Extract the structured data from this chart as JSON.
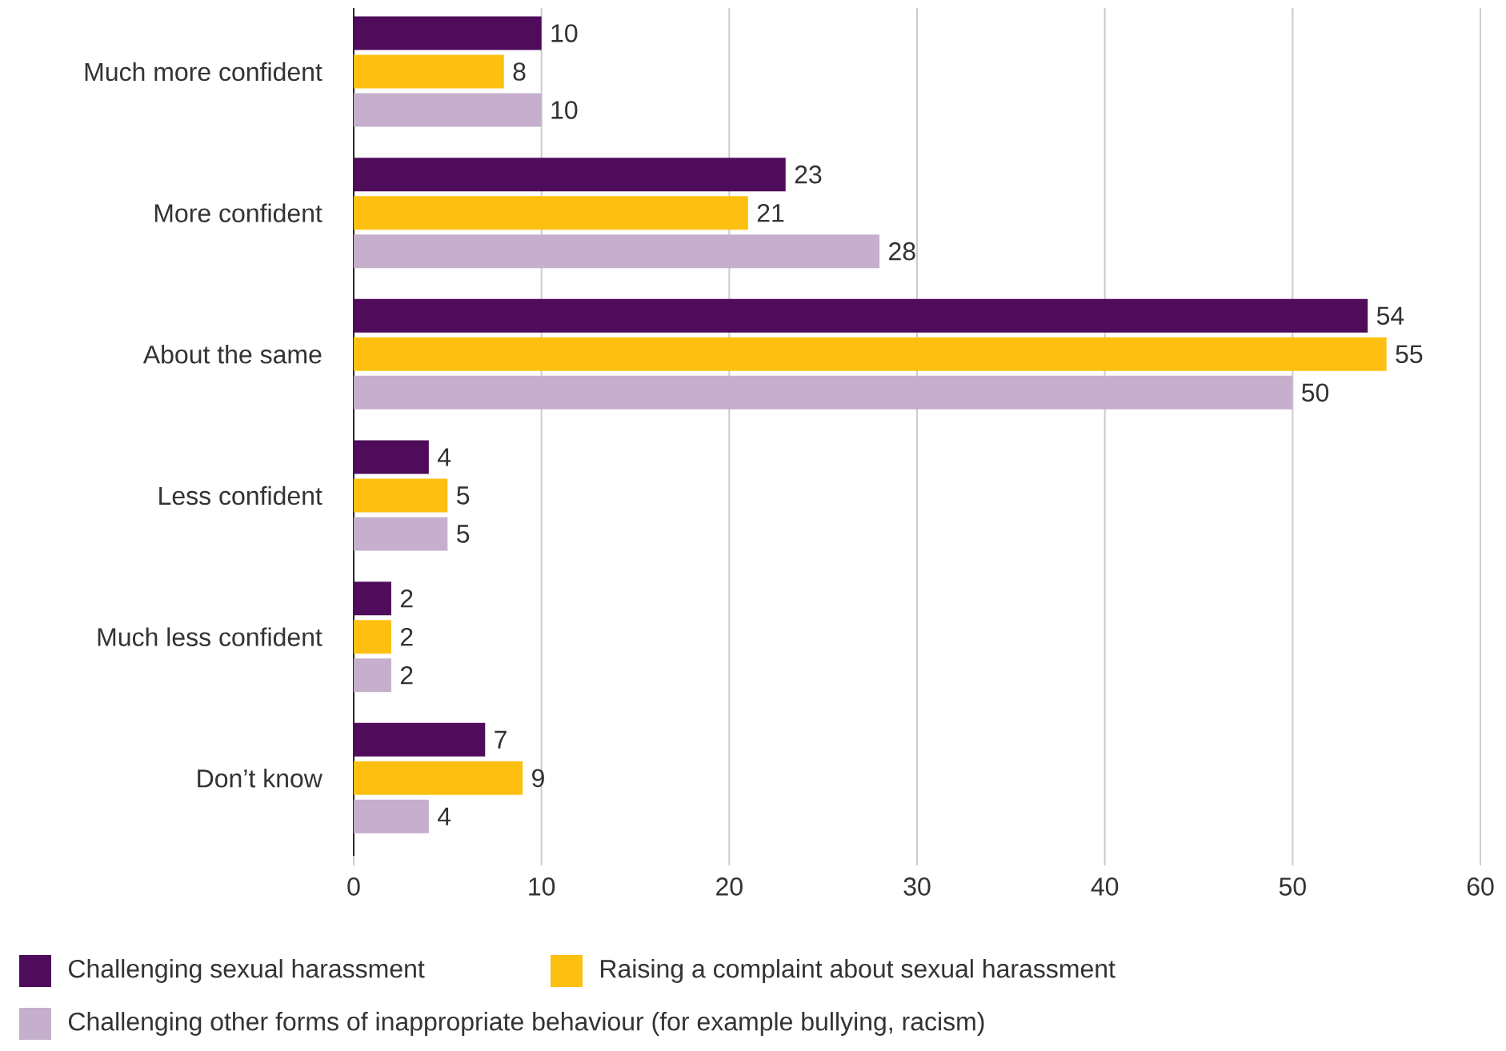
{
  "chart_data": {
    "type": "bar",
    "orientation": "horizontal",
    "categories": [
      "Much more confident",
      "More confident",
      "About the same",
      "Less confident",
      "Much less confident",
      "Don’t know"
    ],
    "series": [
      {
        "name": "Challenging sexual harassment",
        "color": "#4f0c5a",
        "values": [
          10,
          23,
          54,
          4,
          2,
          7
        ]
      },
      {
        "name": "Raising a complaint about sexual harassment",
        "color": "#fdc010",
        "values": [
          8,
          21,
          55,
          5,
          2,
          9
        ]
      },
      {
        "name": "Challenging other forms of inappropriate behaviour (for example bullying, racism)",
        "color": "#c5afcc",
        "values": [
          10,
          28,
          50,
          5,
          2,
          4
        ]
      }
    ],
    "xlim": [
      0,
      60
    ],
    "xticks": [
      0,
      10,
      20,
      30,
      40,
      50,
      60
    ],
    "grid": "x",
    "legend": "bottom",
    "data_labels": true
  }
}
